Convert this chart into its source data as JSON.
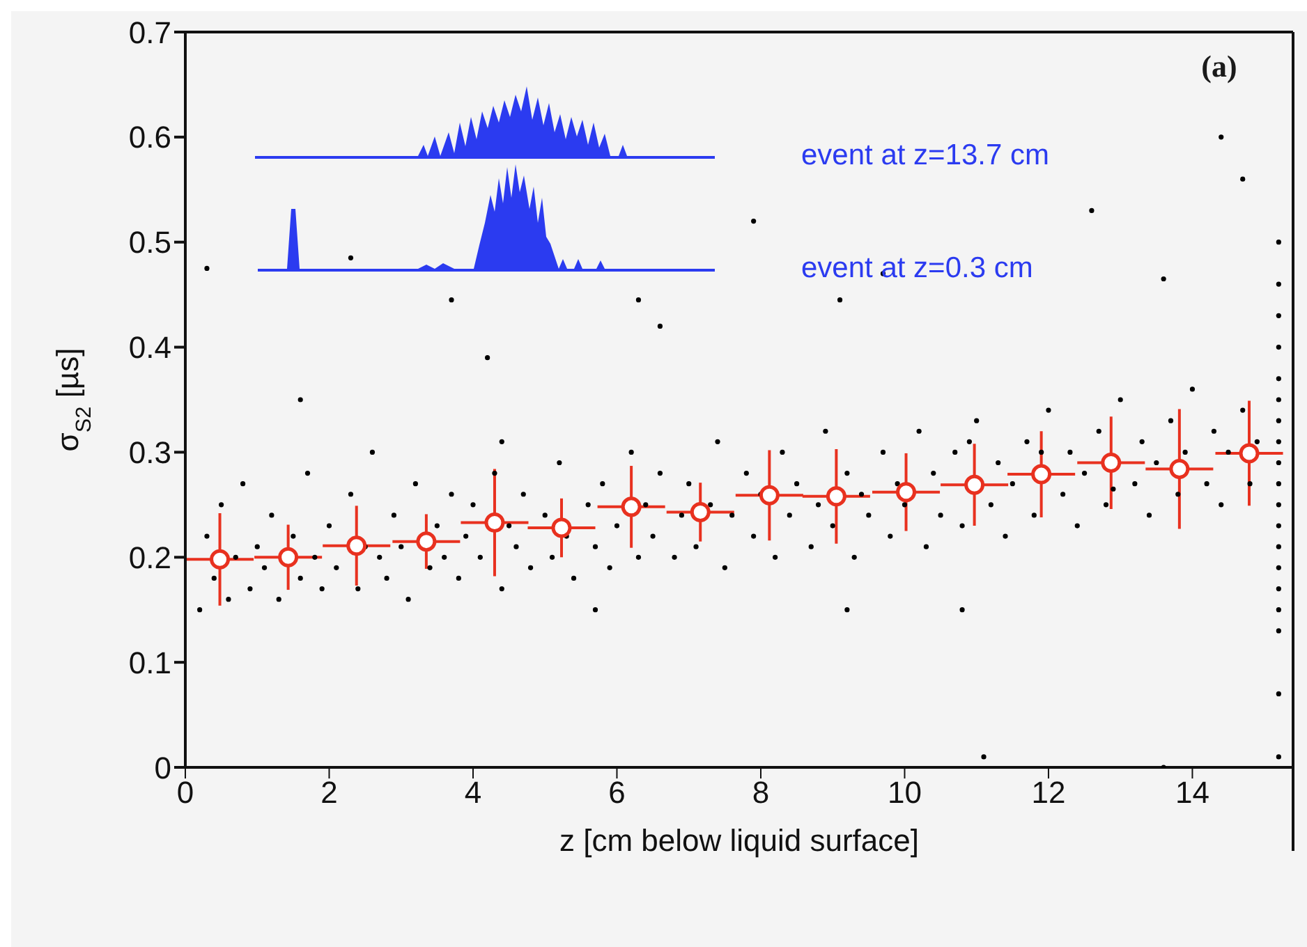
{
  "chart_data": {
    "type": "scatter",
    "xlabel": "z  [cm below liquid surface]",
    "ylabel": "σ$_{S2}$  [µs]",
    "xlim": [
      0,
      15.4
    ],
    "ylim": [
      0,
      0.7
    ],
    "xticks": [
      0,
      2,
      4,
      6,
      8,
      10,
      12,
      14
    ],
    "yticks": [
      0,
      0.1,
      0.2,
      0.3,
      0.4,
      0.5,
      0.6,
      0.7
    ],
    "grid": false,
    "legend": false,
    "marker": "circle",
    "annotations": [
      "event at z=13.7 cm",
      "event at z=0.3 cm",
      "(a)"
    ],
    "series": [
      {
        "color": "#000000",
        "x": [
          0.2,
          0.3,
          0.4,
          0.5,
          0.6,
          0.7,
          0.8,
          0.9,
          1.0,
          1.1,
          1.2,
          1.3,
          1.5,
          1.6,
          1.7,
          1.8,
          1.9,
          2.0,
          2.1,
          2.3,
          2.4,
          2.5,
          2.6,
          2.7,
          2.8,
          2.9,
          3.0,
          3.1,
          3.2,
          3.4,
          3.5,
          3.6,
          3.7,
          3.8,
          3.9,
          4.0,
          4.1,
          4.3,
          4.4,
          4.5,
          4.6,
          4.7,
          4.8,
          5.0,
          5.1,
          5.2,
          5.3,
          5.4,
          5.6,
          5.7,
          5.8,
          5.9,
          6.0,
          6.2,
          6.3,
          6.4,
          6.5,
          6.6,
          6.8,
          6.9,
          7.0,
          7.1,
          7.3,
          7.4,
          7.5,
          7.6,
          7.8,
          7.9,
          8.0,
          8.2,
          8.3,
          8.4,
          8.5,
          8.7,
          8.8,
          8.9,
          9.0,
          9.2,
          9.3,
          9.4,
          9.5,
          9.7,
          9.8,
          9.9,
          10.0,
          10.2,
          10.3,
          10.4,
          10.5,
          10.7,
          10.8,
          10.9,
          11.0,
          11.2,
          11.3,
          11.4,
          11.5,
          11.7,
          11.8,
          11.9,
          12.0,
          12.2,
          12.3,
          12.4,
          12.5,
          12.7,
          12.8,
          12.9,
          13.0,
          13.2,
          13.3,
          13.4,
          13.5,
          13.7,
          13.8,
          13.9,
          14.0,
          14.2,
          14.3,
          14.4,
          14.5,
          14.7,
          14.8,
          14.9,
          0.3,
          1.6,
          2.3,
          3.7,
          4.2,
          6.3,
          6.6,
          7.9,
          9.1,
          9.7,
          11.1,
          12.6,
          13.6,
          14.4,
          14.7,
          4.4,
          10.8,
          13.6,
          5.7,
          9.2,
          15.2,
          15.2,
          15.2,
          15.2,
          15.2,
          15.2,
          15.2,
          15.2,
          15.2,
          15.2,
          15.2,
          15.2,
          15.2,
          15.2,
          15.2,
          15.2,
          15.2,
          15.2,
          15.2
        ],
        "values": [
          0.15,
          0.22,
          0.18,
          0.25,
          0.16,
          0.2,
          0.27,
          0.17,
          0.21,
          0.19,
          0.24,
          0.16,
          0.22,
          0.18,
          0.28,
          0.2,
          0.17,
          0.23,
          0.19,
          0.26,
          0.17,
          0.21,
          0.3,
          0.2,
          0.18,
          0.24,
          0.21,
          0.16,
          0.27,
          0.19,
          0.23,
          0.2,
          0.26,
          0.18,
          0.22,
          0.25,
          0.2,
          0.28,
          0.17,
          0.23,
          0.21,
          0.26,
          0.19,
          0.24,
          0.2,
          0.29,
          0.22,
          0.18,
          0.25,
          0.21,
          0.27,
          0.19,
          0.23,
          0.3,
          0.2,
          0.25,
          0.22,
          0.28,
          0.2,
          0.24,
          0.27,
          0.21,
          0.25,
          0.31,
          0.19,
          0.24,
          0.28,
          0.22,
          0.26,
          0.2,
          0.3,
          0.24,
          0.27,
          0.21,
          0.25,
          0.32,
          0.23,
          0.28,
          0.2,
          0.26,
          0.24,
          0.3,
          0.22,
          0.27,
          0.25,
          0.32,
          0.21,
          0.28,
          0.24,
          0.3,
          0.23,
          0.31,
          0.33,
          0.25,
          0.29,
          0.22,
          0.27,
          0.31,
          0.24,
          0.3,
          0.34,
          0.26,
          0.3,
          0.23,
          0.28,
          0.32,
          0.25,
          0.265,
          0.35,
          0.27,
          0.31,
          0.24,
          0.29,
          0.33,
          0.26,
          0.3,
          0.36,
          0.27,
          0.32,
          0.25,
          0.3,
          0.34,
          0.27,
          0.31,
          0.475,
          0.35,
          0.485,
          0.445,
          0.39,
          0.445,
          0.42,
          0.52,
          0.445,
          0.47,
          0.01,
          0.53,
          0.465,
          0.6,
          0.56,
          0.31,
          0.15,
          0.0,
          0.15,
          0.15,
          0.01,
          0.07,
          0.13,
          0.15,
          0.17,
          0.19,
          0.21,
          0.23,
          0.25,
          0.27,
          0.29,
          0.31,
          0.33,
          0.35,
          0.37,
          0.4,
          0.43,
          0.46,
          0.5
        ]
      },
      {
        "color": "#e8311f",
        "x": [
          0.48,
          1.43,
          2.38,
          3.35,
          4.3,
          5.23,
          6.2,
          7.16,
          8.12,
          9.05,
          10.02,
          10.97,
          11.9,
          12.87,
          13.82,
          14.79
        ],
        "values": [
          0.198,
          0.2,
          0.211,
          0.215,
          0.233,
          0.228,
          0.248,
          0.243,
          0.259,
          0.258,
          0.262,
          0.269,
          0.279,
          0.29,
          0.284,
          0.299
        ],
        "errors": [
          0.044,
          0.031,
          0.038,
          0.026,
          0.051,
          0.028,
          0.039,
          0.028,
          0.043,
          0.045,
          0.037,
          0.039,
          0.041,
          0.044,
          0.057,
          0.05
        ],
        "xerrors": [
          0.47,
          0.47,
          0.47,
          0.47,
          0.47,
          0.47,
          0.47,
          0.47,
          0.47,
          0.47,
          0.47,
          0.47,
          0.47,
          0.47,
          0.47,
          0.47
        ]
      }
    ]
  }
}
